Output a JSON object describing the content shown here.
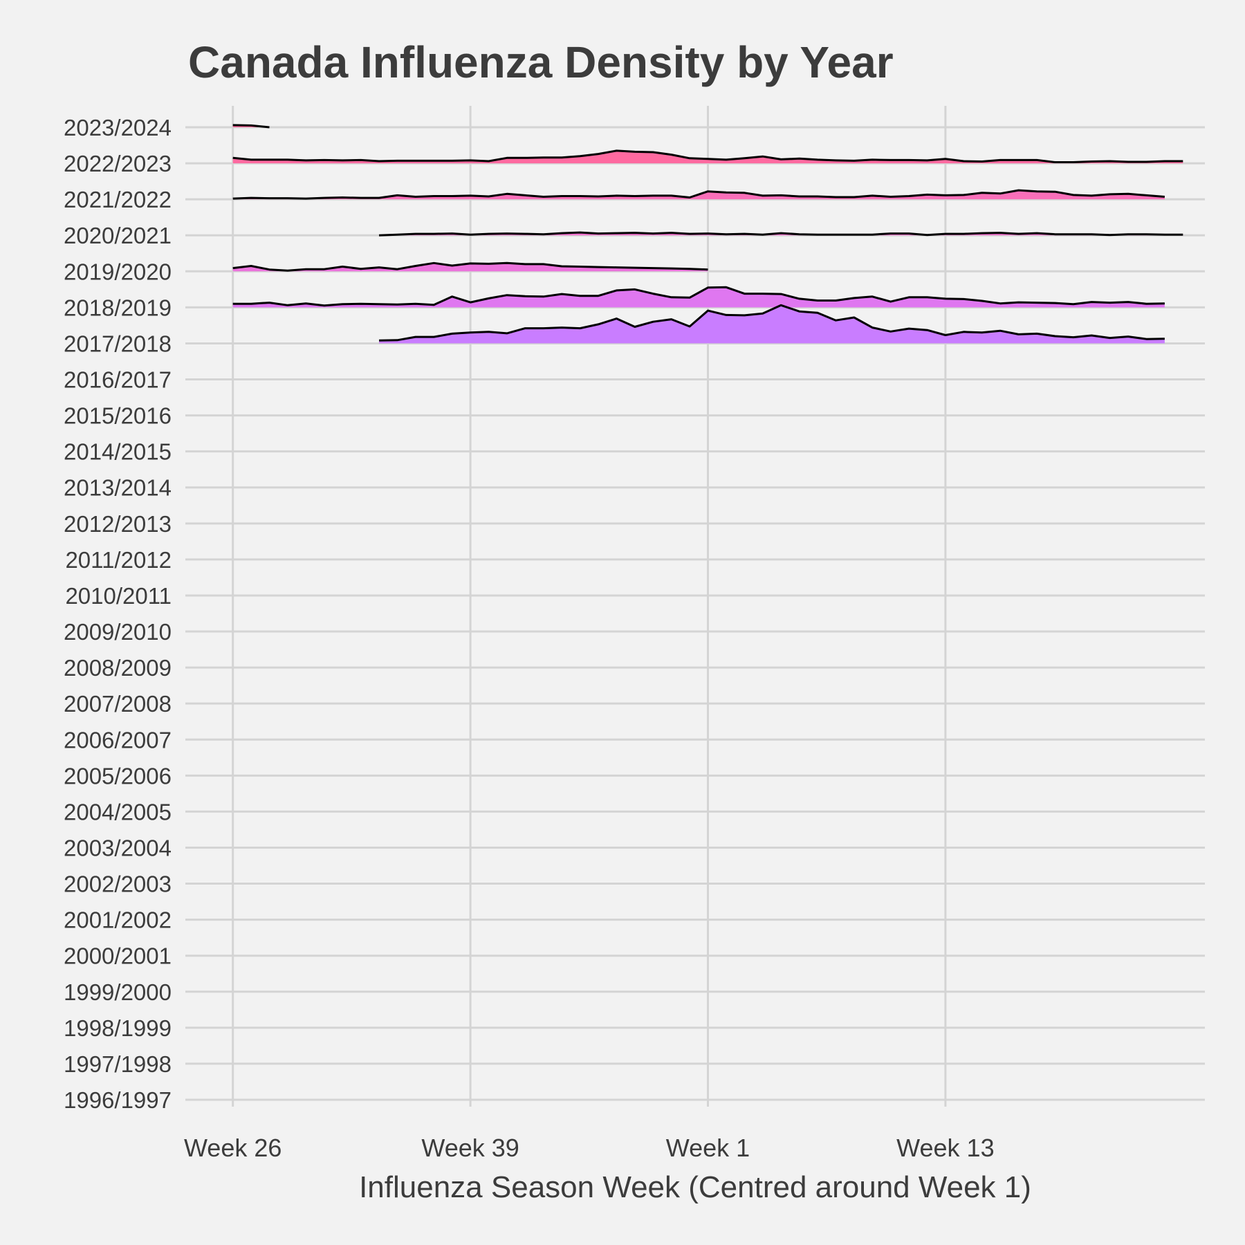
{
  "chart_data": {
    "type": "area",
    "title": "Canada Influenza Density by Year",
    "xlabel": "Influenza Season Week (Centred around Week 1)",
    "ylabel": "",
    "x_axis": {
      "ticks": [
        {
          "label": "Week 26",
          "index": 0
        },
        {
          "label": "Week 39",
          "index": 13
        },
        {
          "label": "Week 1",
          "index": 26
        },
        {
          "label": "Week 13",
          "index": 39
        }
      ],
      "range": [
        -2.6,
        53.2
      ]
    },
    "y_axis": {
      "categories": [
        "1996/1997",
        "1997/1998",
        "1998/1999",
        "1999/2000",
        "2000/2001",
        "2001/2002",
        "2002/2003",
        "2003/2004",
        "2004/2005",
        "2005/2006",
        "2006/2007",
        "2007/2008",
        "2008/2009",
        "2009/2010",
        "2010/2011",
        "2011/2012",
        "2012/2013",
        "2013/2014",
        "2014/2015",
        "2015/2016",
        "2016/2017",
        "2017/2018",
        "2018/2019",
        "2019/2020",
        "2020/2021",
        "2021/2022",
        "2022/2023",
        "2023/2024"
      ]
    },
    "grid": true,
    "legend": "none",
    "colors": {
      "2023/2024": "#ff6aa0",
      "2022/2023": "#ff6aa0",
      "2021/2022": "#f96fb9",
      "2020/2021": "#f273cf",
      "2019/2020": "#eb73dc",
      "2018/2019": "#df77f0",
      "2017/2018": "#c97dff"
    },
    "series": [
      {
        "name": "2023/2024",
        "start": 0,
        "values": [
          0.06,
          0.05,
          0.0
        ]
      },
      {
        "name": "2022/2023",
        "start": 0,
        "values": [
          0.15,
          0.1,
          0.1,
          0.1,
          0.08,
          0.09,
          0.08,
          0.09,
          0.06,
          0.07,
          0.07,
          0.07,
          0.07,
          0.08,
          0.06,
          0.15,
          0.15,
          0.16,
          0.16,
          0.2,
          0.26,
          0.35,
          0.32,
          0.31,
          0.24,
          0.14,
          0.12,
          0.1,
          0.14,
          0.19,
          0.11,
          0.13,
          0.1,
          0.08,
          0.07,
          0.1,
          0.09,
          0.09,
          0.08,
          0.12,
          0.06,
          0.05,
          0.09,
          0.09,
          0.09,
          0.03,
          0.03,
          0.05,
          0.06,
          0.04,
          0.04,
          0.06,
          0.06
        ]
      },
      {
        "name": "2021/2022",
        "start": 0,
        "values": [
          0.02,
          0.04,
          0.03,
          0.03,
          0.02,
          0.04,
          0.05,
          0.04,
          0.04,
          0.11,
          0.07,
          0.09,
          0.09,
          0.1,
          0.08,
          0.15,
          0.11,
          0.07,
          0.09,
          0.09,
          0.08,
          0.1,
          0.09,
          0.1,
          0.1,
          0.05,
          0.22,
          0.19,
          0.18,
          0.1,
          0.11,
          0.08,
          0.08,
          0.06,
          0.06,
          0.1,
          0.07,
          0.09,
          0.13,
          0.11,
          0.12,
          0.18,
          0.16,
          0.25,
          0.22,
          0.21,
          0.12,
          0.1,
          0.14,
          0.15,
          0.11,
          0.07
        ]
      },
      {
        "name": "2020/2021",
        "start": 8,
        "values": [
          0.0,
          0.02,
          0.04,
          0.04,
          0.05,
          0.02,
          0.04,
          0.05,
          0.04,
          0.03,
          0.06,
          0.08,
          0.05,
          0.06,
          0.07,
          0.05,
          0.07,
          0.04,
          0.05,
          0.03,
          0.04,
          0.02,
          0.06,
          0.03,
          0.02,
          0.02,
          0.02,
          0.02,
          0.05,
          0.05,
          0.01,
          0.04,
          0.04,
          0.06,
          0.07,
          0.04,
          0.06,
          0.03,
          0.03,
          0.03,
          0.01,
          0.03,
          0.03,
          0.02,
          0.02
        ]
      },
      {
        "name": "2019/2020",
        "start": 0,
        "values": [
          0.09,
          0.15,
          0.05,
          0.02,
          0.06,
          0.06,
          0.13,
          0.07,
          0.11,
          0.06,
          0.15,
          0.23,
          0.16,
          0.22,
          0.21,
          0.23,
          0.2,
          0.2,
          0.14,
          0.13,
          0.12,
          0.11,
          0.1,
          0.09,
          0.08,
          0.07,
          0.05
        ]
      },
      {
        "name": "2018/2019",
        "start": 0,
        "values": [
          0.1,
          0.1,
          0.13,
          0.06,
          0.11,
          0.05,
          0.09,
          0.1,
          0.09,
          0.08,
          0.1,
          0.07,
          0.3,
          0.14,
          0.25,
          0.34,
          0.31,
          0.3,
          0.37,
          0.32,
          0.32,
          0.47,
          0.5,
          0.38,
          0.28,
          0.27,
          0.55,
          0.56,
          0.38,
          0.38,
          0.37,
          0.24,
          0.19,
          0.19,
          0.26,
          0.3,
          0.16,
          0.28,
          0.28,
          0.24,
          0.23,
          0.18,
          0.11,
          0.14,
          0.13,
          0.12,
          0.09,
          0.15,
          0.13,
          0.15,
          0.1,
          0.11
        ]
      },
      {
        "name": "2017/2018",
        "start": 8,
        "values": [
          0.08,
          0.09,
          0.18,
          0.18,
          0.27,
          0.3,
          0.32,
          0.28,
          0.42,
          0.42,
          0.44,
          0.42,
          0.53,
          0.69,
          0.46,
          0.6,
          0.67,
          0.47,
          0.91,
          0.79,
          0.78,
          0.83,
          1.06,
          0.89,
          0.85,
          0.64,
          0.72,
          0.44,
          0.33,
          0.41,
          0.37,
          0.23,
          0.32,
          0.3,
          0.35,
          0.25,
          0.27,
          0.2,
          0.17,
          0.22,
          0.15,
          0.19,
          0.12,
          0.13
        ]
      }
    ]
  }
}
